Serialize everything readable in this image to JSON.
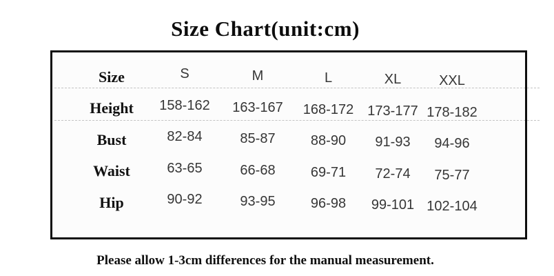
{
  "chart_data": {
    "type": "table",
    "title": "Size Chart(unit:cm)",
    "columns": [
      "Size",
      "S",
      "M",
      "L",
      "XL",
      "XXL"
    ],
    "rows": [
      {
        "label": "Height",
        "values": [
          "158-162",
          "163-167",
          "168-172",
          "173-177",
          "178-182"
        ]
      },
      {
        "label": "Bust",
        "values": [
          "82-84",
          "85-87",
          "88-90",
          "91-93",
          "94-96"
        ]
      },
      {
        "label": "Waist",
        "values": [
          "63-65",
          "66-68",
          "69-71",
          "72-74",
          "75-77"
        ]
      },
      {
        "label": "Hip",
        "values": [
          "90-92",
          "93-95",
          "96-98",
          "99-101",
          "102-104"
        ]
      }
    ],
    "note": "Please allow 1-3cm differences for the manual measurement.",
    "layout": {
      "grid": "off",
      "divider_style": "dashed",
      "border_color": "#0d0d0d",
      "divider_color": "#c3c3c3",
      "label_color": "#121212",
      "value_color": "#363636"
    }
  }
}
